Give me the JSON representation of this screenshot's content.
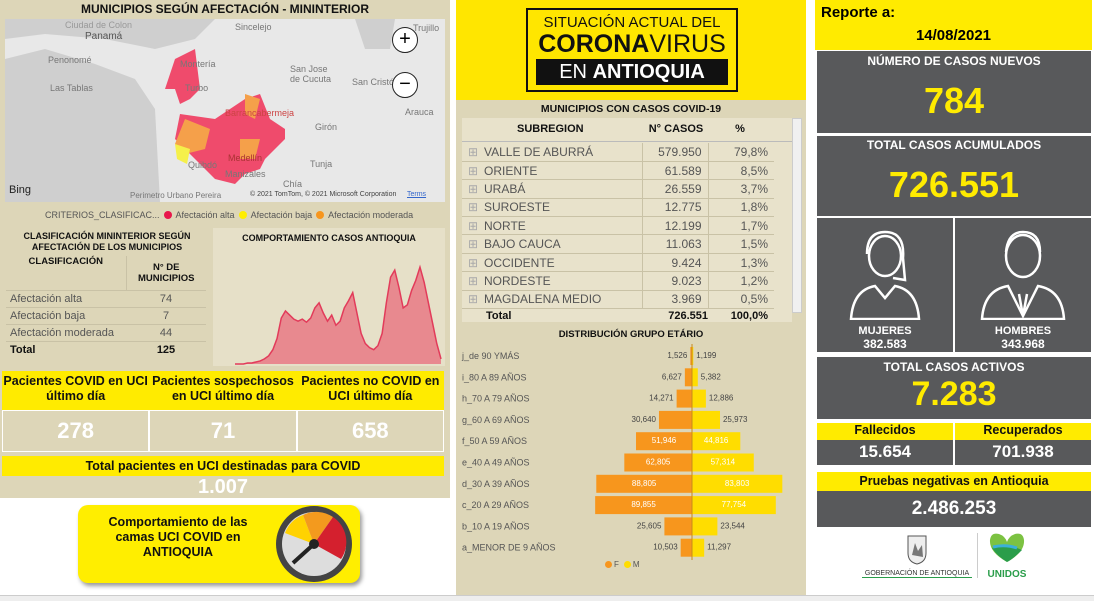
{
  "map": {
    "title": "MUNICIPIOS SEGÚN AFECTACIÓN - MININTERIOR",
    "places": [
      "Ciudad de Colon",
      "Panamá",
      "Penonomé",
      "Las Tablas",
      "Montería",
      "Sincelejo",
      "Turbo",
      "San Jose de Cucuta",
      "San Cristó",
      "Arauca",
      "Trujillo",
      "Barrancabermeja",
      "Girón",
      "Medellín",
      "Quibdó",
      "Tunja",
      "Manizales",
      "Chía",
      "Perimetro Urbano Pereira"
    ],
    "zoom_in": "+",
    "zoom_out": "−",
    "bing": "Bing",
    "copyright": "© 2021 TomTom, © 2021 Microsoft Corporation",
    "terms": "Terms",
    "legend": {
      "title": "CRITERIOS_CLASIFICAC...",
      "items": [
        {
          "label": "Afectación alta",
          "color": "#e8174b"
        },
        {
          "label": "Afectación baja",
          "color": "#ffee00"
        },
        {
          "label": "Afectación moderada",
          "color": "#f7961d"
        }
      ]
    }
  },
  "clasificacion": {
    "title": "CLASIFICACIÓN MININTERIOR SEGÚN AFECTACIÓN DE LOS MUNICIPIOS",
    "col1": "CLASIFICACIÓN",
    "col2": "N° DE MUNICIPIOS",
    "rows": [
      {
        "label": "Afectación alta",
        "value": "74"
      },
      {
        "label": "Afectación baja",
        "value": "7"
      },
      {
        "label": "Afectación moderada",
        "value": "44"
      }
    ],
    "total_label": "Total",
    "total": "125"
  },
  "chart_data": [
    {
      "type": "area",
      "title": "COMPORTAMIENTO CASOS ANTIOQUIA",
      "color": "#e23b5a",
      "series": [
        {
          "values": [
            0,
            0,
            0,
            1,
            1,
            2,
            3,
            5,
            8,
            14,
            25,
            45,
            52,
            48,
            44,
            42,
            44,
            41,
            45,
            55,
            60,
            50,
            42,
            48,
            38,
            42,
            55,
            62,
            70,
            50,
            30,
            20,
            16,
            14,
            18,
            30,
            60,
            85,
            92,
            75,
            55,
            58,
            72,
            82,
            95,
            80,
            60,
            40,
            20,
            5
          ]
        }
      ]
    },
    {
      "type": "bar",
      "title": "DISTRIBUCIÓN GRUPO ETÁRIO",
      "orientation": "horizontal-pyramid",
      "categories": [
        "j_de 90 YMÁS",
        "i_80 A 89 AÑOS",
        "h_70 A 79 AÑOS",
        "g_60 A 69 AÑOS",
        "f_50 A 59 AÑOS",
        "e_40 A 49 AÑOS",
        "d_30 A 39 AÑOS",
        "c_20 A 29 AÑOS",
        "b_10 A 19 AÑOS",
        "a_MENOR DE 9 AÑOS"
      ],
      "series": [
        {
          "name": "F",
          "color": "#f7961d",
          "values": [
            1526,
            6627,
            14271,
            30640,
            51946,
            62805,
            88805,
            89855,
            25605,
            10503
          ],
          "labels": [
            "1,526",
            "6,627",
            "14,271",
            "30,640",
            "51,946",
            "62,805",
            "88,805",
            "89,855",
            "25,605",
            "10,503"
          ]
        },
        {
          "name": "M",
          "color": "#ffdd00",
          "values": [
            1199,
            5382,
            12886,
            25973,
            44816,
            57314,
            83803,
            77754,
            23544,
            11297
          ],
          "labels": [
            "1,199",
            "5,382",
            "12,886",
            "25,973",
            "44,816",
            "57,314",
            "83,803",
            "77,754",
            "23,544",
            "11,297"
          ]
        }
      ]
    }
  ],
  "uci": {
    "headers": [
      "Pacientes COVID en UCI último día",
      "Pacientes sospechosos en UCI último día",
      "Pacientes no COVID en UCI último día"
    ],
    "values": [
      "278",
      "71",
      "658"
    ],
    "total_label": "Total pacientes en UCI destinadas para COVID",
    "total": "1.007",
    "camas_button": "Comportamiento de las camas UCI COVID en ANTIOQUIA"
  },
  "banner": {
    "line1": "SITUACIÓN ACTUAL DEL",
    "line2a": "CORONA",
    "line2b": "VIRUS",
    "line3a": "EN ",
    "line3b": "ANTIOQUIA"
  },
  "subregiones": {
    "title": "MUNICIPIOS CON CASOS COVID-19",
    "cols": [
      "SUBREGION",
      "N° CASOS",
      "%"
    ],
    "rows": [
      {
        "name": "VALLE DE ABURRÁ",
        "casos": "579.950",
        "pct": "79,8%"
      },
      {
        "name": "ORIENTE",
        "casos": "61.589",
        "pct": "8,5%"
      },
      {
        "name": "URABÁ",
        "casos": "26.559",
        "pct": "3,7%"
      },
      {
        "name": "SUROESTE",
        "casos": "12.775",
        "pct": "1,8%"
      },
      {
        "name": "NORTE",
        "casos": "12.199",
        "pct": "1,7%"
      },
      {
        "name": "BAJO CAUCA",
        "casos": "11.063",
        "pct": "1,5%"
      },
      {
        "name": "OCCIDENTE",
        "casos": "9.424",
        "pct": "1,3%"
      },
      {
        "name": "NORDESTE",
        "casos": "9.023",
        "pct": "1,2%"
      },
      {
        "name": "MAGDALENA MEDIO",
        "casos": "3.969",
        "pct": "0,5%"
      }
    ],
    "total_label": "Total",
    "total": "726.551",
    "total_pct": "100,0%"
  },
  "reporte": {
    "label": "Reporte a:",
    "date": "14/08/2021"
  },
  "nuevos": {
    "label": "NÚMERO DE CASOS NUEVOS",
    "value": "784"
  },
  "acumulados": {
    "label": "TOTAL CASOS ACUMULADOS",
    "value": "726.551"
  },
  "mujeres": {
    "label": "MUJERES",
    "value": "382.583"
  },
  "hombres": {
    "label": "HOMBRES",
    "value": "343.968"
  },
  "activos": {
    "label": "TOTAL CASOS ACTIVOS",
    "value": "7.283"
  },
  "fallecidos": {
    "label": "Fallecidos",
    "value": "15.654"
  },
  "recuperados": {
    "label": "Recuperados",
    "value": "701.938"
  },
  "negativas": {
    "label": "Pruebas negativas en Antioquia",
    "value": "2.486.253"
  },
  "logos": {
    "gob": "GOBERNACIÓN DE ANTIOQUIA",
    "unidos": "UNIDOS"
  }
}
